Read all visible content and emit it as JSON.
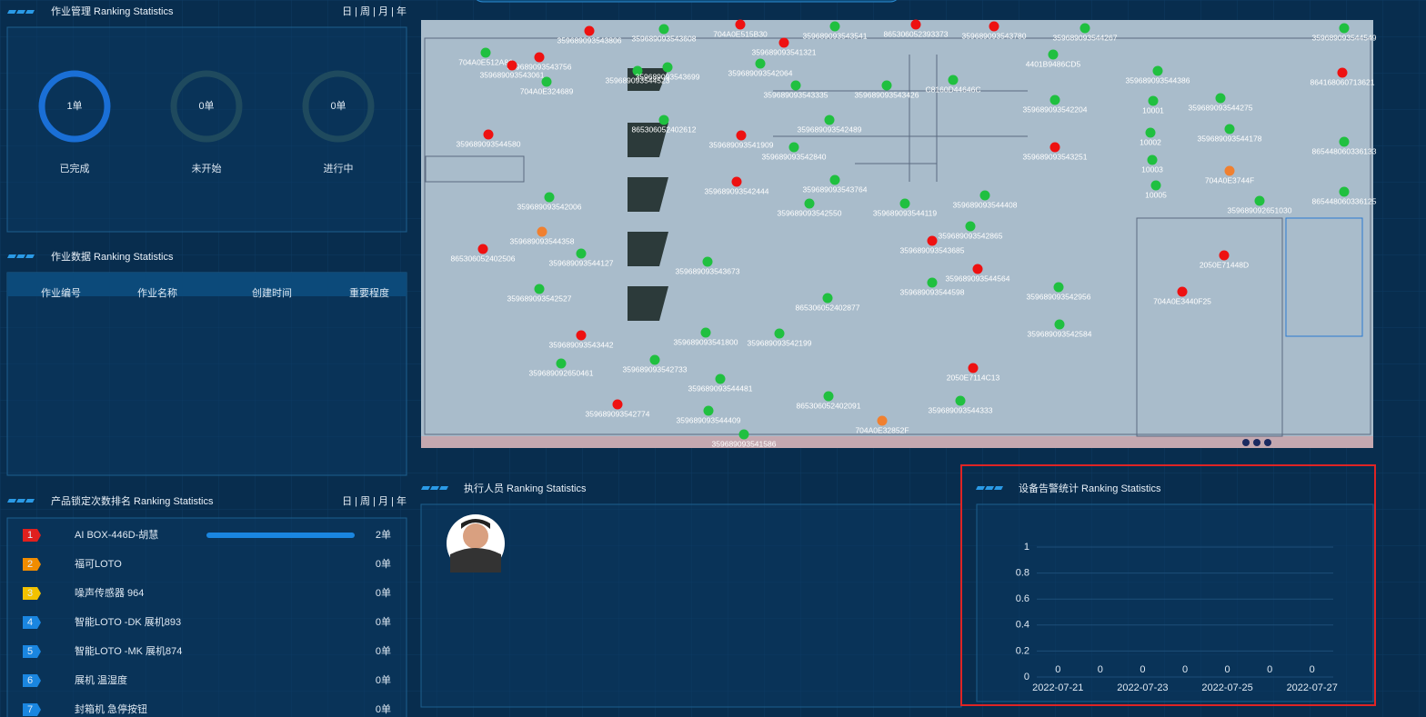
{
  "work_management": {
    "title": "作业管理 Ranking Statistics",
    "period": "日 | 周 | 月 | 年",
    "stats": [
      {
        "value": 1,
        "label": "1单",
        "caption": "已完成",
        "color": "#1a6fd6"
      },
      {
        "value": 0,
        "label": "0单",
        "caption": "未开始",
        "color": "#1f4a5e"
      },
      {
        "value": 0,
        "label": "0单",
        "caption": "进行中",
        "color": "#1f4a5e"
      }
    ]
  },
  "work_data": {
    "title": "作业数据 Ranking Statistics",
    "columns": [
      "作业编号",
      "作业名称",
      "创建时间",
      "重要程度"
    ]
  },
  "product_ranking": {
    "title": "产品锁定次数排名 Ranking Statistics",
    "period": "日 | 周 | 月 | 年",
    "ranks": [
      1,
      2,
      3,
      4,
      5,
      6,
      7
    ],
    "badge_colors": [
      "#e0201e",
      "#f08c00",
      "#f2c200",
      "#1a86e0",
      "#1a86e0",
      "#1a86e0",
      "#1a86e0"
    ],
    "items": [
      "AI BOX-446D-胡慧",
      "福可LOTO",
      "噪声传感器 964",
      "智能LOTO -DK 展机893",
      "智能LOTO -MK 展机874",
      "展机 温湿度",
      "封箱机 急停按钮"
    ],
    "values": [
      2,
      0,
      0,
      0,
      0,
      0,
      0
    ],
    "value_labels": [
      "2单",
      "0单",
      "0单",
      "0单",
      "0单",
      "0单",
      "0单"
    ]
  },
  "map": {
    "devices": [
      {
        "name": "704A0E512A86",
        "color": "#20c040"
      },
      {
        "name": "359689093543756",
        "color": "#ee1111"
      },
      {
        "name": "359689093543061",
        "color": "#ee1111"
      },
      {
        "name": "704A0E324689",
        "color": "#20c040"
      },
      {
        "name": "359689093543806",
        "color": "#ee1111"
      },
      {
        "name": "359689093543608",
        "color": "#20c040"
      },
      {
        "name": "704A0E515B30",
        "color": "#ee1111"
      },
      {
        "name": "359689093543541",
        "color": "#20c040"
      },
      {
        "name": "865306052393373",
        "color": "#ee1111"
      },
      {
        "name": "359689093543780",
        "color": "#ee1111"
      },
      {
        "name": "359689093544267",
        "color": "#20c040"
      },
      {
        "name": "359689093544549",
        "color": "#20c040"
      },
      {
        "name": "359689093544523",
        "color": "#20c040"
      },
      {
        "name": "359689093543699",
        "color": "#20c040"
      },
      {
        "name": "359689093541321",
        "color": "#ee1111"
      },
      {
        "name": "359689093542064",
        "color": "#20c040"
      },
      {
        "name": "359689093543335",
        "color": "#20c040"
      },
      {
        "name": "359689093543426",
        "color": "#20c040"
      },
      {
        "name": "359689093542489",
        "color": "#20c040"
      },
      {
        "name": "359689093542840",
        "color": "#20c040"
      },
      {
        "name": "359689093541909",
        "color": "#ee1111"
      },
      {
        "name": "865306052402612",
        "color": "#20c040"
      },
      {
        "name": "359689093544580",
        "color": "#ee1111"
      },
      {
        "name": "359689093542006",
        "color": "#20c040"
      },
      {
        "name": "359689093544358",
        "color": "#f08030"
      },
      {
        "name": "865306052402506",
        "color": "#ee1111"
      },
      {
        "name": "359689093544127",
        "color": "#20c040"
      },
      {
        "name": "359689093542527",
        "color": "#20c040"
      },
      {
        "name": "359689093543442",
        "color": "#ee1111"
      },
      {
        "name": "359689092650461",
        "color": "#20c040"
      },
      {
        "name": "359689093542733",
        "color": "#20c040"
      },
      {
        "name": "359689093542774",
        "color": "#ee1111"
      },
      {
        "name": "359689093544409",
        "color": "#20c040"
      },
      {
        "name": "359689093541586",
        "color": "#20c040"
      },
      {
        "name": "359689093544481",
        "color": "#20c040"
      },
      {
        "name": "359689093541800",
        "color": "#20c040"
      },
      {
        "name": "359689093542199",
        "color": "#20c040"
      },
      {
        "name": "359689093543673",
        "color": "#20c040"
      },
      {
        "name": "359689093542444",
        "color": "#ee1111"
      },
      {
        "name": "359689093543764",
        "color": "#20c040"
      },
      {
        "name": "359689093542550",
        "color": "#20c040"
      },
      {
        "name": "359689093544119",
        "color": "#20c040"
      },
      {
        "name": "359689093544408",
        "color": "#20c040"
      },
      {
        "name": "359689093542865",
        "color": "#20c040"
      },
      {
        "name": "359689093543685",
        "color": "#ee1111"
      },
      {
        "name": "359689093544564",
        "color": "#ee1111"
      },
      {
        "name": "359689093544598",
        "color": "#20c040"
      },
      {
        "name": "865306052402877",
        "color": "#20c040"
      },
      {
        "name": "704A0E32852F",
        "color": "#f08030"
      },
      {
        "name": "865306052402091",
        "color": "#20c040"
      },
      {
        "name": "2050E7114C13",
        "color": "#ee1111"
      },
      {
        "name": "359689093544333",
        "color": "#20c040"
      },
      {
        "name": "359689093542584",
        "color": "#20c040"
      },
      {
        "name": "359689093542956",
        "color": "#20c040"
      },
      {
        "name": "359689093542204",
        "color": "#20c040"
      },
      {
        "name": "359689093543251",
        "color": "#ee1111"
      },
      {
        "name": "4401B9486CD5",
        "color": "#20c040"
      },
      {
        "name": "C8160D44646C",
        "color": "#20c040"
      },
      {
        "name": "359689093544386",
        "color": "#20c040"
      },
      {
        "name": "359689093544275",
        "color": "#20c040"
      },
      {
        "name": "359689093544178",
        "color": "#20c040"
      },
      {
        "name": "10001",
        "color": "#20c040"
      },
      {
        "name": "10002",
        "color": "#20c040"
      },
      {
        "name": "10003",
        "color": "#20c040"
      },
      {
        "name": "10005",
        "color": "#20c040"
      },
      {
        "name": "704A0E3744F",
        "color": "#f08030"
      },
      {
        "name": "359689092651030",
        "color": "#20c040"
      },
      {
        "name": "865448060336133",
        "color": "#20c040"
      },
      {
        "name": "865448060336125",
        "color": "#20c040"
      },
      {
        "name": "864168060713621",
        "color": "#ee1111"
      },
      {
        "name": "2050E71448D",
        "color": "#ee1111"
      },
      {
        "name": "704A0E3440F25",
        "color": "#ee1111"
      }
    ]
  },
  "executors": {
    "title": "执行人员 Ranking Statistics"
  },
  "chart_data": {
    "type": "bar",
    "title": "设备告警统计 Ranking Statistics",
    "categories": [
      "2022-07-21",
      null,
      "2022-07-23",
      null,
      "2022-07-25",
      null,
      "2022-07-27"
    ],
    "values": [
      0,
      0,
      0,
      0,
      0,
      0,
      0
    ],
    "color": "#3aa0ff",
    "ylim": [
      0,
      1
    ],
    "yticks": [
      0,
      0.2,
      0.4,
      0.6,
      0.8,
      1
    ],
    "grid": true
  }
}
